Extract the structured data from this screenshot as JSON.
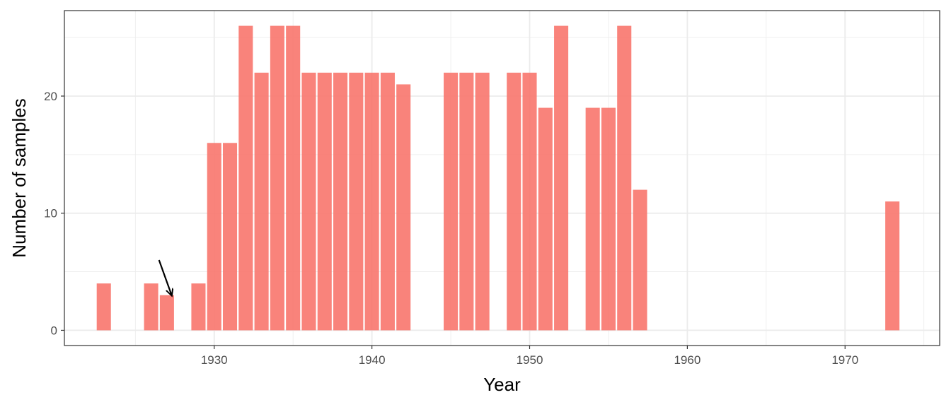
{
  "chart_data": {
    "type": "bar",
    "xlabel": "Year",
    "ylabel": "Number of samples",
    "xlim": [
      1920.5,
      1976
    ],
    "ylim": [
      -1.3,
      27.3
    ],
    "x_ticks": [
      1930,
      1940,
      1950,
      1960,
      1970
    ],
    "y_ticks": [
      0,
      10,
      20
    ],
    "grid": true,
    "legend": "none",
    "bar_color": "#F8766D",
    "x": [
      1923,
      1926,
      1927,
      1929,
      1930,
      1931,
      1932,
      1933,
      1934,
      1935,
      1936,
      1937,
      1938,
      1939,
      1940,
      1941,
      1942,
      1945,
      1946,
      1947,
      1949,
      1950,
      1951,
      1952,
      1954,
      1955,
      1956,
      1957,
      1973
    ],
    "values": [
      4,
      4,
      3,
      4,
      16,
      16,
      26,
      22,
      26,
      26,
      22,
      22,
      22,
      22,
      22,
      22,
      21,
      22,
      22,
      22,
      22,
      22,
      19,
      26,
      19,
      19,
      26,
      12,
      11
    ],
    "annotations": [
      {
        "type": "arrow",
        "from": [
          1926.5,
          6
        ],
        "to": [
          1927.3,
          3
        ]
      }
    ]
  }
}
